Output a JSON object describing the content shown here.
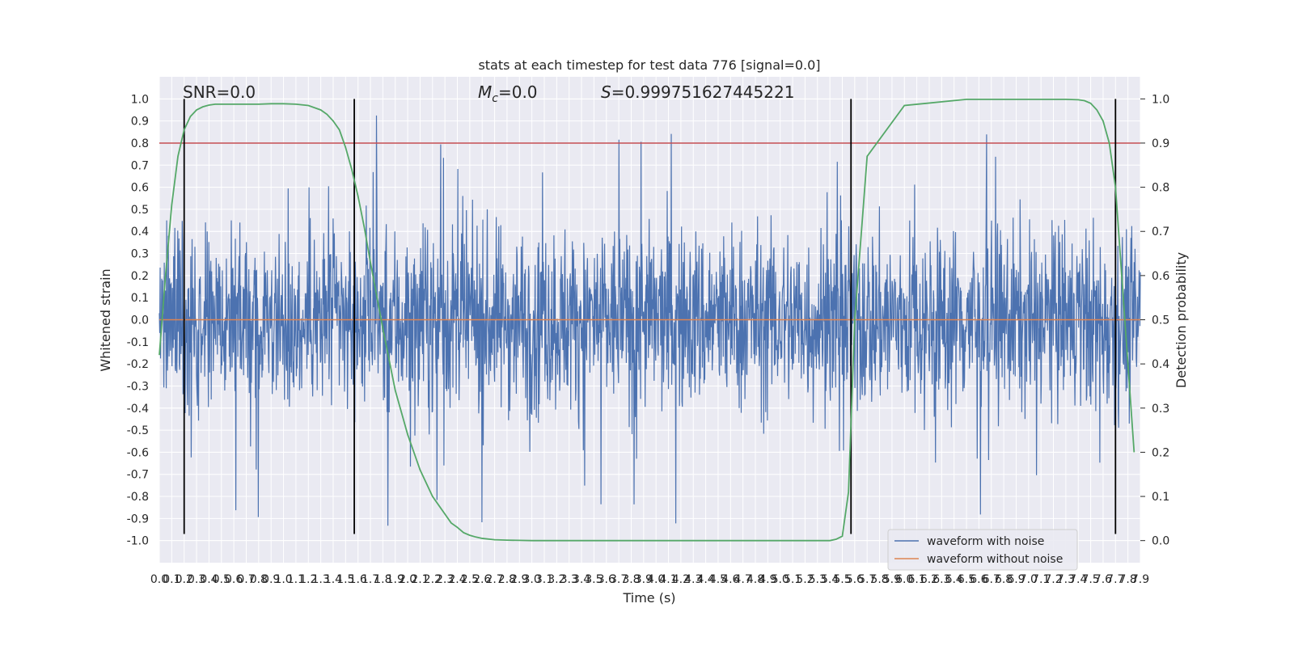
{
  "chart_data": {
    "type": "line",
    "title": "stats at each timestep for test data 776 [signal=0.0]",
    "xlabel": "Time (s)",
    "ylabel": "Whitened strain",
    "y2label": "Detection probability",
    "annotations": {
      "snr": "SNR=0.0",
      "mc_symbol": "M",
      "mc_sub": "c",
      "mc_value": "=0.0",
      "s_symbol": "S",
      "s_value": "=0.999751627445221"
    },
    "xlim": [
      0.0,
      7.9
    ],
    "ylim": [
      -1.1,
      1.1
    ],
    "y2lim": [
      -0.05,
      1.05
    ],
    "grid": true,
    "x_ticks": [
      0.0,
      0.1,
      0.2,
      0.3,
      0.4,
      0.5,
      0.6,
      0.7,
      0.8,
      0.9,
      1.0,
      1.1,
      1.2,
      1.3,
      1.4,
      1.5,
      1.6,
      1.7,
      1.8,
      1.9,
      2.0,
      2.1,
      2.2,
      2.3,
      2.4,
      2.5,
      2.6,
      2.7,
      2.8,
      2.9,
      3.0,
      3.1,
      3.2,
      3.3,
      3.4,
      3.5,
      3.6,
      3.7,
      3.8,
      3.9,
      4.0,
      4.1,
      4.2,
      4.3,
      4.4,
      4.5,
      4.6,
      4.7,
      4.8,
      4.9,
      5.0,
      5.1,
      5.2,
      5.3,
      5.4,
      5.5,
      5.6,
      5.7,
      5.8,
      5.9,
      6.0,
      6.1,
      6.2,
      6.3,
      6.4,
      6.5,
      6.6,
      6.7,
      6.8,
      6.9,
      7.0,
      7.1,
      7.2,
      7.3,
      7.4,
      7.5,
      7.6,
      7.7,
      7.8,
      7.9
    ],
    "y_ticks": [
      -1.0,
      -0.9,
      -0.8,
      -0.7,
      -0.6,
      -0.5,
      -0.4,
      -0.3,
      -0.2,
      -0.1,
      0.0,
      0.1,
      0.2,
      0.3,
      0.4,
      0.5,
      0.6,
      0.7,
      0.8,
      0.9,
      1.0
    ],
    "y2_ticks": [
      0.0,
      0.1,
      0.2,
      0.3,
      0.4,
      0.5,
      0.6,
      0.7,
      0.8,
      0.9,
      1.0
    ],
    "legend": {
      "placement": "lower-right",
      "entries": [
        "waveform with noise",
        "waveform without noise"
      ]
    },
    "series": [
      {
        "name": "waveform with noise",
        "color": "#4c72b0",
        "kind": "dense-noise",
        "approx_range": [
          -0.97,
          1.0
        ],
        "typical_amplitude": 0.38
      },
      {
        "name": "waveform without noise",
        "color": "#dd8452",
        "x": [
          0.0,
          7.9
        ],
        "y": [
          0.0,
          0.0
        ]
      },
      {
        "color": "#55a868",
        "axis": "right",
        "x": [
          0.0,
          0.05,
          0.1,
          0.15,
          0.2,
          0.25,
          0.3,
          0.35,
          0.4,
          0.45,
          0.5,
          0.6,
          0.7,
          0.8,
          0.9,
          1.0,
          1.1,
          1.2,
          1.3,
          1.35,
          1.4,
          1.45,
          1.5,
          1.55,
          1.6,
          1.65,
          1.7,
          1.8,
          1.9,
          2.0,
          2.1,
          2.2,
          2.3,
          2.35,
          2.4,
          2.45,
          2.5,
          2.55,
          2.6,
          2.7,
          2.8,
          2.9,
          3.0,
          3.5,
          4.0,
          4.5,
          5.0,
          5.3,
          5.4,
          5.45,
          5.5,
          5.55,
          5.6,
          5.7,
          6.0,
          6.5,
          7.0,
          7.2,
          7.3,
          7.4,
          7.45,
          7.5,
          7.55,
          7.6,
          7.65,
          7.7,
          7.75,
          7.8,
          7.85
        ],
        "y": [
          0.42,
          0.6,
          0.76,
          0.87,
          0.93,
          0.96,
          0.975,
          0.982,
          0.986,
          0.988,
          0.988,
          0.988,
          0.988,
          0.988,
          0.989,
          0.989,
          0.988,
          0.985,
          0.975,
          0.965,
          0.95,
          0.93,
          0.89,
          0.84,
          0.78,
          0.71,
          0.63,
          0.48,
          0.34,
          0.24,
          0.16,
          0.1,
          0.06,
          0.04,
          0.03,
          0.018,
          0.012,
          0.008,
          0.005,
          0.002,
          0.001,
          0.0005,
          0.0,
          0.0,
          0.0,
          0.0,
          0.0,
          0.0,
          0.0,
          0.003,
          0.01,
          0.11,
          0.5,
          0.87,
          0.985,
          0.999,
          0.999,
          0.999,
          0.999,
          0.998,
          0.996,
          0.99,
          0.975,
          0.95,
          0.9,
          0.8,
          0.6,
          0.4,
          0.2
        ]
      }
    ],
    "horizontal_lines": [
      {
        "y": 0.8,
        "color": "#c44e52"
      }
    ],
    "vertical_lines": [
      {
        "x": 0.2,
        "color": "#000000",
        "y_range": [
          -0.97,
          1.0
        ]
      },
      {
        "x": 1.57,
        "color": "#000000",
        "y_range": [
          -0.97,
          1.0
        ]
      },
      {
        "x": 5.57,
        "color": "#000000",
        "y_range": [
          -0.97,
          1.0
        ]
      },
      {
        "x": 7.7,
        "color": "#000000",
        "y_range": [
          -0.97,
          1.0
        ]
      }
    ],
    "colors": {
      "plot_bg": "#eaeaf2",
      "grid": "#ffffff",
      "noise": "#4c72b0",
      "clean": "#dd8452",
      "probability": "#55a868",
      "threshold": "#c44e52",
      "markers": "#000000"
    }
  }
}
